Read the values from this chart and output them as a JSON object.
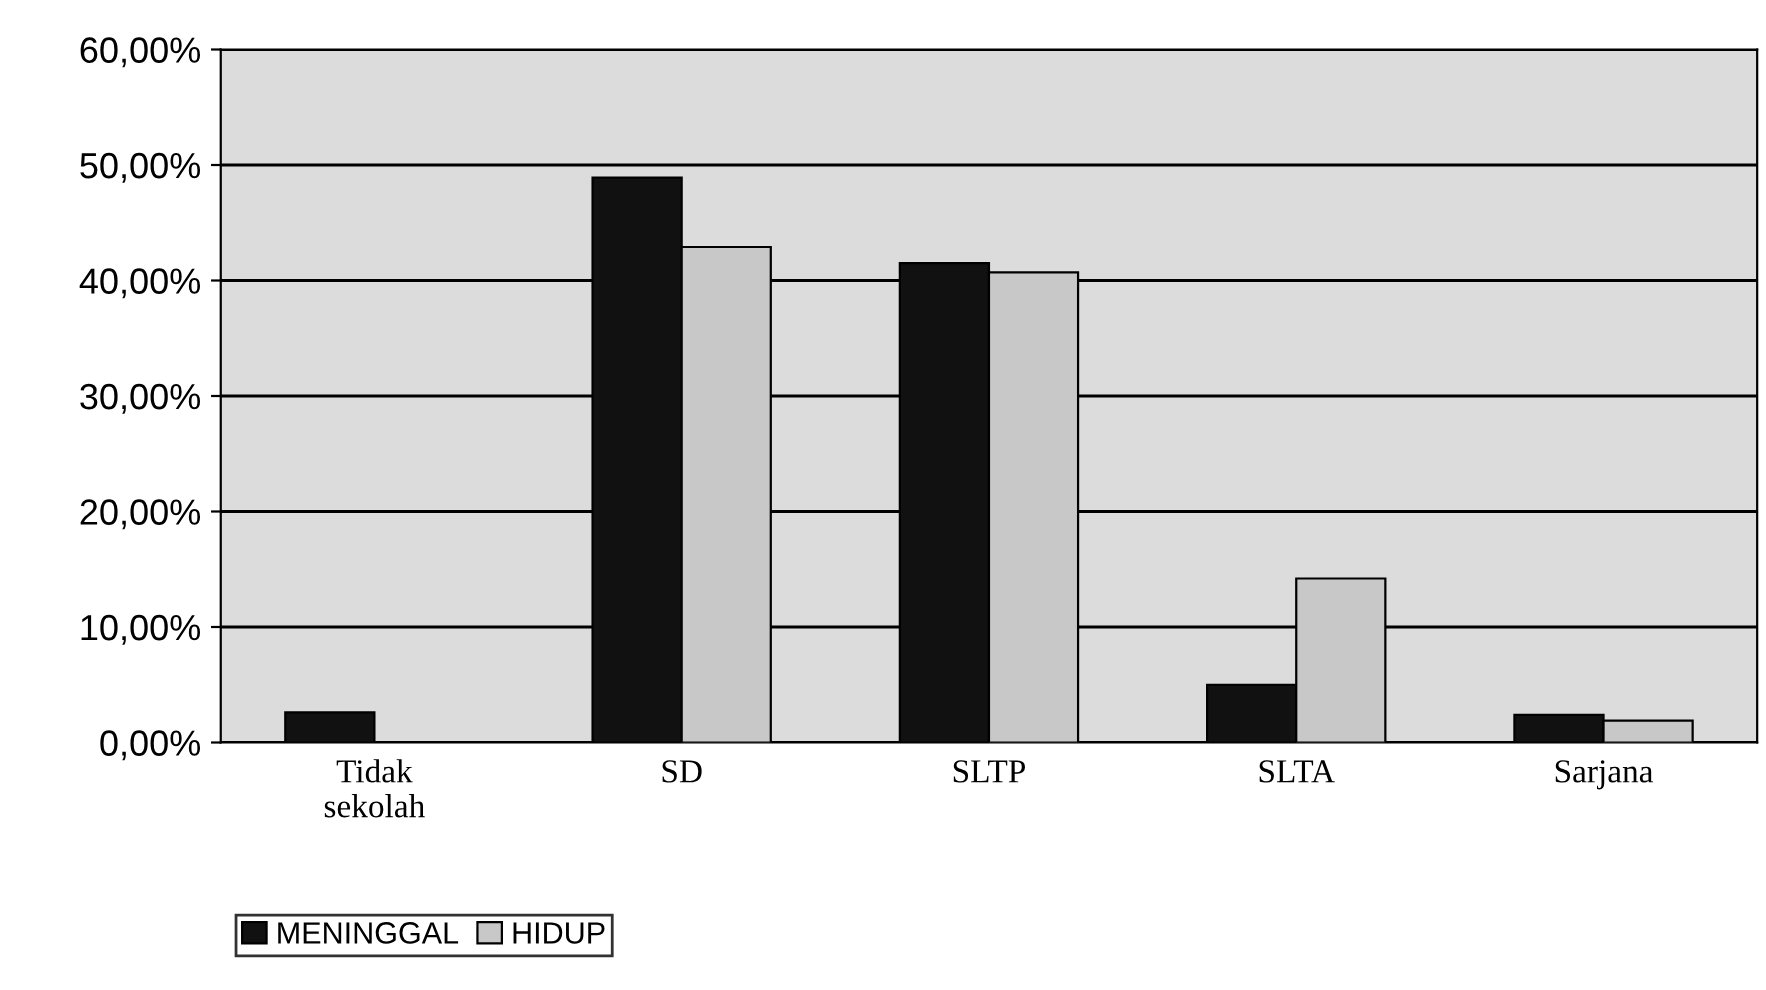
{
  "chart_data": {
    "type": "bar",
    "categories": [
      "Tidak\nsekolah",
      "SD",
      "SLTP",
      "SLTA",
      "Sarjana"
    ],
    "series": [
      {
        "name": "MENINGGAL",
        "color": "#111111",
        "values": [
          2.6,
          48.9,
          41.5,
          5.0,
          2.4
        ]
      },
      {
        "name": "HIDUP",
        "color": "#c8c8c8",
        "values": [
          null,
          42.9,
          40.7,
          14.2,
          1.9
        ]
      }
    ],
    "ylim": [
      0,
      60
    ],
    "yticks": [
      {
        "value": 0,
        "label": "0,00%"
      },
      {
        "value": 10,
        "label": "10,00%"
      },
      {
        "value": 20,
        "label": "20,00%"
      },
      {
        "value": 30,
        "label": "30,00%"
      },
      {
        "value": 40,
        "label": "40,00%"
      },
      {
        "value": 50,
        "label": "50,00%"
      },
      {
        "value": 60,
        "label": "60,00%"
      }
    ],
    "grid": "y",
    "legend": "bottom left"
  }
}
